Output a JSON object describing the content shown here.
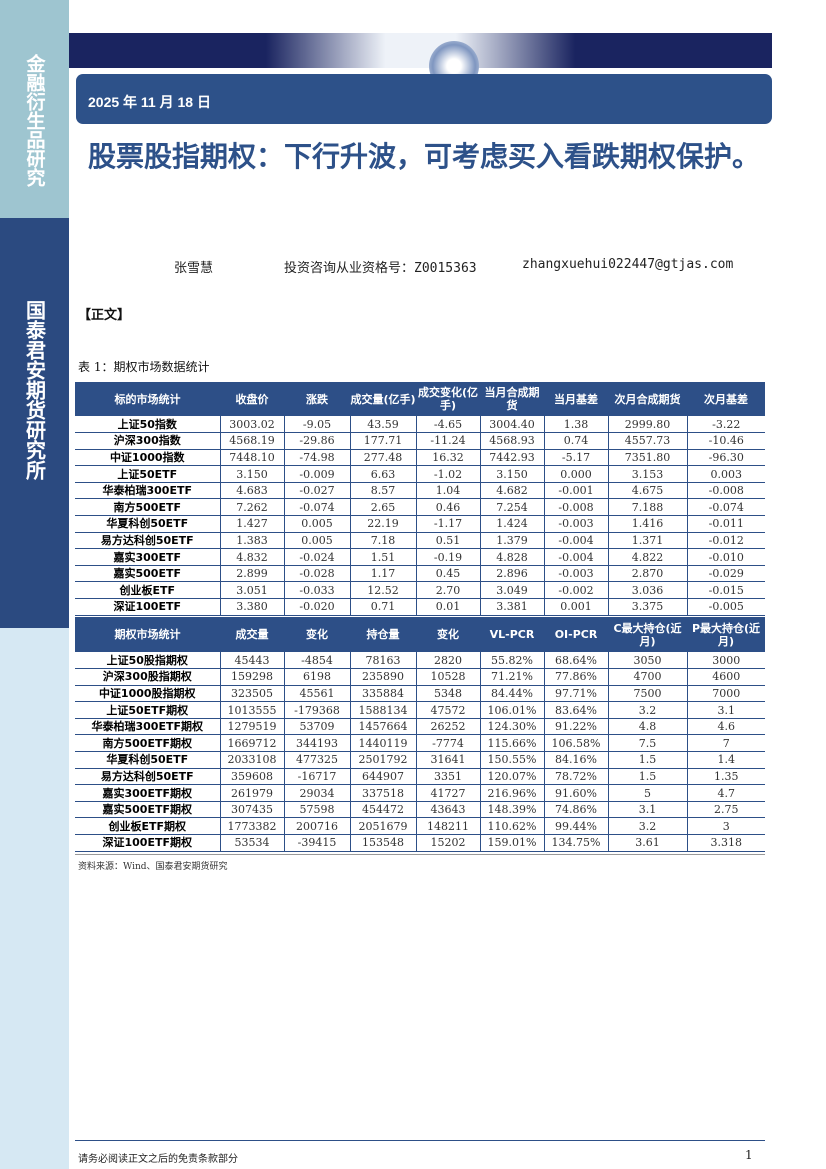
{
  "sidebar": {
    "top_label": "金融衍生品研究",
    "institute": "国泰君安期货研究所"
  },
  "header": {
    "date": "2025 年 11 月 18 日",
    "title": "股票股指期权：下行升波，可考虑买入看跌期权保护。"
  },
  "author": {
    "name": "张雪慧",
    "qualification": "投资咨询从业资格号：Z0015363",
    "email": "zhangxuehui022447@gtjas.com"
  },
  "section_label": "【正文】",
  "table_caption": "表 1：期权市场数据统计",
  "table1": {
    "headers": [
      "标的市场统计",
      "收盘价",
      "涨跌",
      "成交量(亿手)",
      "成交变化(亿手)",
      "当月合成期货",
      "当月基差",
      "次月合成期货",
      "次月基差"
    ],
    "rows": [
      [
        "上证50指数",
        "3003.02",
        "-9.05",
        "43.59",
        "-4.65",
        "3004.40",
        "1.38",
        "2999.80",
        "-3.22"
      ],
      [
        "沪深300指数",
        "4568.19",
        "-29.86",
        "177.71",
        "-11.24",
        "4568.93",
        "0.74",
        "4557.73",
        "-10.46"
      ],
      [
        "中证1000指数",
        "7448.10",
        "-74.98",
        "277.48",
        "16.32",
        "7442.93",
        "-5.17",
        "7351.80",
        "-96.30"
      ],
      [
        "上证50ETF",
        "3.150",
        "-0.009",
        "6.63",
        "-1.02",
        "3.150",
        "0.000",
        "3.153",
        "0.003"
      ],
      [
        "华泰柏瑞300ETF",
        "4.683",
        "-0.027",
        "8.57",
        "1.04",
        "4.682",
        "-0.001",
        "4.675",
        "-0.008"
      ],
      [
        "南方500ETF",
        "7.262",
        "-0.074",
        "2.65",
        "0.46",
        "7.254",
        "-0.008",
        "7.188",
        "-0.074"
      ],
      [
        "华夏科创50ETF",
        "1.427",
        "0.005",
        "22.19",
        "-1.17",
        "1.424",
        "-0.003",
        "1.416",
        "-0.011"
      ],
      [
        "易方达科创50ETF",
        "1.383",
        "0.005",
        "7.18",
        "0.51",
        "1.379",
        "-0.004",
        "1.371",
        "-0.012"
      ],
      [
        "嘉实300ETF",
        "4.832",
        "-0.024",
        "1.51",
        "-0.19",
        "4.828",
        "-0.004",
        "4.822",
        "-0.010"
      ],
      [
        "嘉实500ETF",
        "2.899",
        "-0.028",
        "1.17",
        "0.45",
        "2.896",
        "-0.003",
        "2.870",
        "-0.029"
      ],
      [
        "创业板ETF",
        "3.051",
        "-0.033",
        "12.52",
        "2.70",
        "3.049",
        "-0.002",
        "3.036",
        "-0.015"
      ],
      [
        "深证100ETF",
        "3.380",
        "-0.020",
        "0.71",
        "0.01",
        "3.381",
        "0.001",
        "3.375",
        "-0.005"
      ]
    ]
  },
  "table2": {
    "headers": [
      "期权市场统计",
      "成交量",
      "变化",
      "持仓量",
      "变化",
      "VL-PCR",
      "OI-PCR",
      "C最大持仓(近月)",
      "P最大持仓(近月)"
    ],
    "rows": [
      [
        "上证50股指期权",
        "45443",
        "-4854",
        "78163",
        "2820",
        "55.82%",
        "68.64%",
        "3050",
        "3000"
      ],
      [
        "沪深300股指期权",
        "159298",
        "6198",
        "235890",
        "10528",
        "71.21%",
        "77.86%",
        "4700",
        "4600"
      ],
      [
        "中证1000股指期权",
        "323505",
        "45561",
        "335884",
        "5348",
        "84.44%",
        "97.71%",
        "7500",
        "7000"
      ],
      [
        "上证50ETF期权",
        "1013555",
        "-179368",
        "1588134",
        "47572",
        "106.01%",
        "83.64%",
        "3.2",
        "3.1"
      ],
      [
        "华泰柏瑞300ETF期权",
        "1279519",
        "53709",
        "1457664",
        "26252",
        "124.30%",
        "91.22%",
        "4.8",
        "4.6"
      ],
      [
        "南方500ETF期权",
        "1669712",
        "344193",
        "1440119",
        "-7774",
        "115.66%",
        "106.58%",
        "7.5",
        "7"
      ],
      [
        "华夏科创50ETF",
        "2033108",
        "477325",
        "2501792",
        "31641",
        "150.55%",
        "84.16%",
        "1.5",
        "1.4"
      ],
      [
        "易方达科创50ETF",
        "359608",
        "-16717",
        "644907",
        "3351",
        "120.07%",
        "78.72%",
        "1.5",
        "1.35"
      ],
      [
        "嘉实300ETF期权",
        "261979",
        "29034",
        "337518",
        "41727",
        "216.96%",
        "91.60%",
        "5",
        "4.7"
      ],
      [
        "嘉实500ETF期权",
        "307435",
        "57598",
        "454472",
        "43643",
        "148.39%",
        "74.86%",
        "3.1",
        "2.75"
      ],
      [
        "创业板ETF期权",
        "1773382",
        "200716",
        "2051679",
        "148211",
        "110.62%",
        "99.44%",
        "3.2",
        "3"
      ],
      [
        "深证100ETF期权",
        "53534",
        "-39415",
        "153548",
        "15202",
        "159.01%",
        "134.75%",
        "3.61",
        "3.318"
      ]
    ]
  },
  "source": "资料来源：Wind、国泰君安期货研究",
  "footer": {
    "disclaimer": "请务必阅读正文之后的免责条款部分",
    "page": "1"
  }
}
